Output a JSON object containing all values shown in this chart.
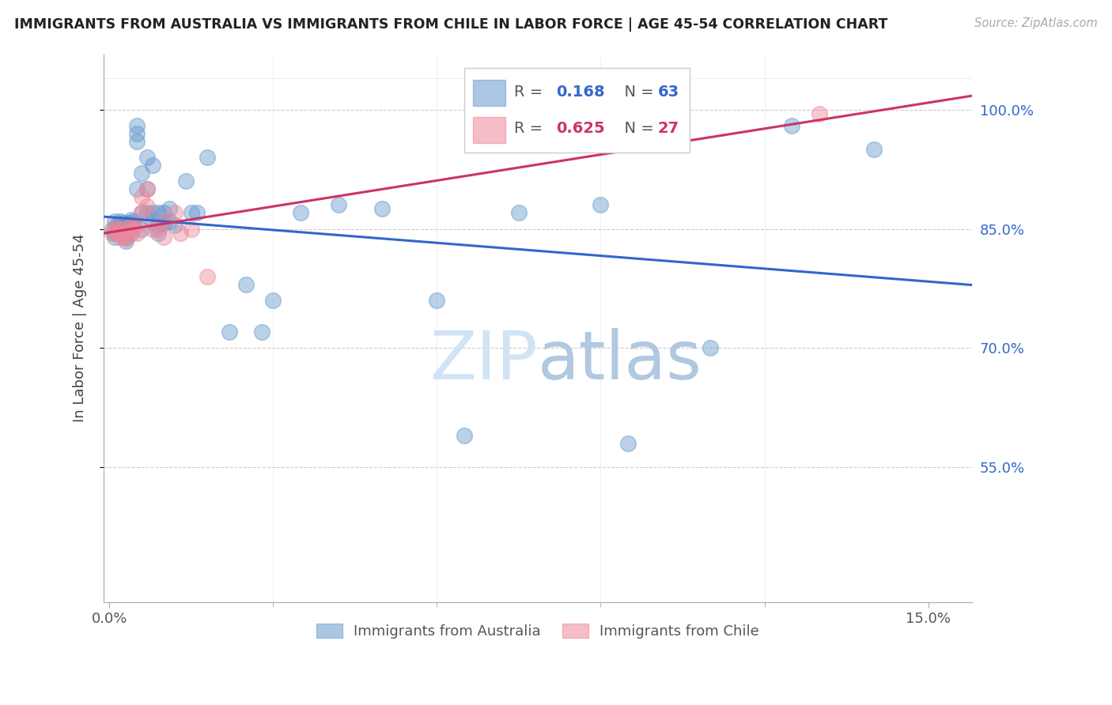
{
  "title": "IMMIGRANTS FROM AUSTRALIA VS IMMIGRANTS FROM CHILE IN LABOR FORCE | AGE 45-54 CORRELATION CHART",
  "source": "Source: ZipAtlas.com",
  "ylabel": "In Labor Force | Age 45-54",
  "xlim": [
    -0.001,
    0.158
  ],
  "ylim": [
    0.38,
    1.07
  ],
  "aus_R": 0.168,
  "aus_N": 63,
  "chile_R": 0.625,
  "chile_N": 27,
  "aus_color": "#6699cc",
  "chile_color": "#ee8899",
  "aus_line_color": "#3366cc",
  "chile_line_color": "#cc3366",
  "watermark_color": "#d0e4f5",
  "grid_color": "#cccccc",
  "aus_x": [
    0.0005,
    0.001,
    0.001,
    0.001,
    0.0015,
    0.0015,
    0.002,
    0.002,
    0.002,
    0.0025,
    0.0025,
    0.003,
    0.003,
    0.003,
    0.003,
    0.003,
    0.0035,
    0.004,
    0.004,
    0.004,
    0.004,
    0.004,
    0.0045,
    0.005,
    0.005,
    0.005,
    0.005,
    0.006,
    0.006,
    0.006,
    0.007,
    0.007,
    0.007,
    0.008,
    0.008,
    0.008,
    0.009,
    0.009,
    0.009,
    0.01,
    0.01,
    0.011,
    0.011,
    0.012,
    0.014,
    0.015,
    0.016,
    0.018,
    0.022,
    0.025,
    0.028,
    0.03,
    0.035,
    0.042,
    0.05,
    0.06,
    0.065,
    0.075,
    0.09,
    0.095,
    0.11,
    0.125,
    0.14
  ],
  "aus_y": [
    0.85,
    0.84,
    0.845,
    0.86,
    0.855,
    0.848,
    0.86,
    0.855,
    0.85,
    0.858,
    0.845,
    0.855,
    0.85,
    0.845,
    0.84,
    0.835,
    0.858,
    0.862,
    0.858,
    0.855,
    0.85,
    0.845,
    0.86,
    0.98,
    0.97,
    0.96,
    0.9,
    0.92,
    0.87,
    0.85,
    0.94,
    0.9,
    0.87,
    0.93,
    0.87,
    0.86,
    0.87,
    0.855,
    0.845,
    0.87,
    0.858,
    0.875,
    0.86,
    0.855,
    0.91,
    0.87,
    0.87,
    0.94,
    0.72,
    0.78,
    0.72,
    0.76,
    0.87,
    0.88,
    0.875,
    0.76,
    0.59,
    0.87,
    0.88,
    0.58,
    0.7,
    0.98,
    0.95
  ],
  "chile_x": [
    0.0005,
    0.001,
    0.001,
    0.002,
    0.002,
    0.002,
    0.003,
    0.003,
    0.003,
    0.004,
    0.004,
    0.004,
    0.005,
    0.005,
    0.006,
    0.006,
    0.007,
    0.007,
    0.008,
    0.009,
    0.01,
    0.01,
    0.012,
    0.013,
    0.015,
    0.018,
    0.13
  ],
  "chile_y": [
    0.845,
    0.848,
    0.852,
    0.85,
    0.845,
    0.84,
    0.845,
    0.838,
    0.84,
    0.855,
    0.852,
    0.848,
    0.855,
    0.845,
    0.89,
    0.87,
    0.9,
    0.878,
    0.85,
    0.85,
    0.86,
    0.84,
    0.87,
    0.845,
    0.85,
    0.79,
    0.995
  ]
}
